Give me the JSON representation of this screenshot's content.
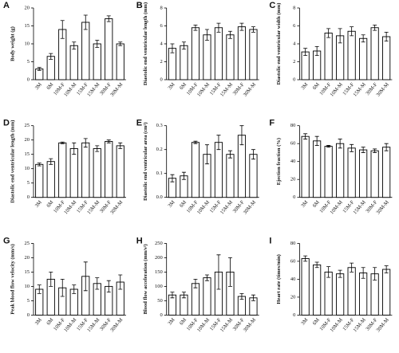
{
  "chart_data": [
    {
      "type": "bar",
      "panel": "A",
      "ylabel": "Body weight (g)",
      "categories": [
        "3M",
        "6M",
        "10M-F",
        "10M-M",
        "15M-F",
        "15M-M",
        "30M-F",
        "30M-M"
      ],
      "values": [
        3,
        6.5,
        14,
        9.5,
        16,
        10,
        17,
        10
      ],
      "errors": [
        0.4,
        0.8,
        2.5,
        1,
        2,
        1,
        0.8,
        0.5
      ],
      "ylim": [
        0,
        20
      ],
      "yticks": [
        0,
        5,
        10,
        15,
        20
      ]
    },
    {
      "type": "bar",
      "panel": "B",
      "ylabel": "Diastolic end ventricular length (mm)",
      "categories": [
        "3M",
        "6M",
        "10M-F",
        "10M-M",
        "15M-F",
        "15M-M",
        "30M-F",
        "30M-M"
      ],
      "values": [
        3.5,
        3.8,
        5.8,
        5,
        5.8,
        5,
        5.9,
        5.6
      ],
      "errors": [
        0.5,
        0.4,
        0.3,
        0.6,
        0.5,
        0.4,
        0.4,
        0.3
      ],
      "ylim": [
        0,
        8
      ],
      "yticks": [
        0,
        2,
        4,
        6,
        8
      ]
    },
    {
      "type": "bar",
      "panel": "C",
      "ylabel": "Diastolic end ventricular width (mm)",
      "categories": [
        "3M",
        "6M",
        "10M-F",
        "10M-M",
        "15M-F",
        "15M-M",
        "30M-F",
        "30M-M"
      ],
      "values": [
        3.1,
        3.2,
        5.2,
        4.9,
        5.4,
        4.6,
        5.8,
        4.8
      ],
      "errors": [
        0.4,
        0.5,
        0.5,
        0.8,
        0.5,
        0.4,
        0.3,
        0.5
      ],
      "ylim": [
        0,
        8
      ],
      "yticks": [
        0,
        2,
        4,
        6,
        8
      ]
    },
    {
      "type": "bar",
      "panel": "D",
      "ylabel": "Diastolic end ventricular length (mm)",
      "categories": [
        "3M",
        "6M",
        "10M-F",
        "10M-M",
        "15M-F",
        "15M-M",
        "30M-F",
        "30M-M"
      ],
      "values": [
        11.5,
        12.5,
        19,
        17,
        19,
        17,
        19.5,
        18
      ],
      "errors": [
        0.5,
        1,
        0.3,
        2,
        1.5,
        1,
        0.5,
        1
      ],
      "ylim": [
        0,
        25
      ],
      "yticks": [
        0,
        5,
        10,
        15,
        20,
        25
      ]
    },
    {
      "type": "bar",
      "panel": "E",
      "ylabel": "Diastolic end ventricular area (cm²)",
      "categories": [
        "3M",
        "6M",
        "10M-F",
        "10M-M",
        "15M-F",
        "15M-M",
        "30M-F",
        "30M-M"
      ],
      "values": [
        0.08,
        0.09,
        0.23,
        0.18,
        0.23,
        0.18,
        0.26,
        0.18
      ],
      "errors": [
        0.015,
        0.015,
        0.005,
        0.04,
        0.03,
        0.015,
        0.04,
        0.02
      ],
      "ylim": [
        0,
        0.3
      ],
      "yticks": [
        {
          "value": 0,
          "label": "0.0"
        },
        0.1,
        0.2,
        0.3
      ]
    },
    {
      "type": "bar",
      "panel": "F",
      "ylabel": "Ejection fraction (%)",
      "categories": [
        "3M",
        "6M",
        "10M-F",
        "10M-M",
        "15M-F",
        "15M-M",
        "30M-F",
        "30M-M"
      ],
      "values": [
        68,
        63,
        57,
        60,
        55,
        53,
        52,
        56
      ],
      "errors": [
        3,
        5,
        1,
        5,
        4,
        3,
        2,
        4
      ],
      "ylim": [
        0,
        80
      ],
      "yticks": [
        0,
        20,
        40,
        60,
        80
      ]
    },
    {
      "type": "bar",
      "panel": "G",
      "ylabel": "Peak blood flow velocity (mm/s)",
      "categories": [
        "3M",
        "6M",
        "10M-F",
        "10M-M",
        "15M-F",
        "15M-M",
        "30M-F",
        "30M-M"
      ],
      "values": [
        9,
        12.5,
        9.5,
        9,
        13.5,
        11,
        10,
        11.5
      ],
      "errors": [
        1.5,
        2.5,
        3,
        1.5,
        5,
        2,
        2,
        2.5
      ],
      "ylim": [
        0,
        25
      ],
      "yticks": [
        0,
        5,
        10,
        15,
        20,
        25
      ]
    },
    {
      "type": "bar",
      "panel": "H",
      "ylabel": "Blood flow acceleration (mm/s²)",
      "categories": [
        "3M",
        "6M",
        "10M-F",
        "10M-M",
        "15M-F",
        "15M-M",
        "30M-F",
        "30M-M"
      ],
      "values": [
        70,
        70,
        110,
        130,
        150,
        150,
        65,
        60
      ],
      "errors": [
        10,
        10,
        15,
        10,
        60,
        50,
        10,
        10
      ],
      "ylim": [
        0,
        250
      ],
      "yticks": [
        0,
        50,
        100,
        150,
        200,
        250
      ]
    },
    {
      "type": "bar",
      "panel": "I",
      "ylabel": "Heart rate (times/min)",
      "categories": [
        "3M",
        "6M",
        "10M-F",
        "10M-M",
        "15M-F",
        "15M-M",
        "30M-F",
        "30M-M"
      ],
      "values": [
        63,
        56,
        48,
        46,
        53,
        47,
        46,
        51
      ],
      "errors": [
        3,
        3,
        6,
        4,
        5,
        6,
        7,
        4
      ],
      "ylim": [
        0,
        80
      ],
      "yticks": [
        0,
        20,
        40,
        60,
        80
      ]
    }
  ]
}
